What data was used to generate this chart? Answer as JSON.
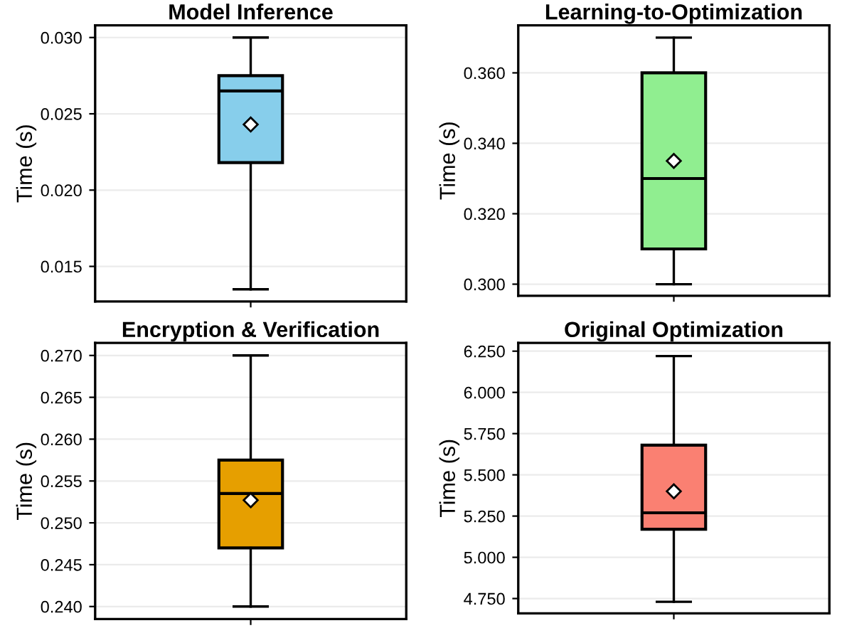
{
  "chart_data": [
    {
      "type": "box",
      "title": "Model Inference",
      "ylabel": "Time (s)",
      "categories": [
        null
      ],
      "series": [
        {
          "color": "#87ceeb",
          "boxes": [
            {
              "low": 0.0135,
              "q1": 0.0218,
              "median": 0.0265,
              "q3": 0.0275,
              "high": 0.03,
              "mean": 0.0243
            }
          ]
        }
      ],
      "ylim": [
        0.0127,
        0.0308
      ],
      "yticks": [
        {
          "value": 0.015,
          "label": "0.015"
        },
        {
          "value": 0.02,
          "label": "0.020"
        },
        {
          "value": 0.025,
          "label": "0.025"
        },
        {
          "value": 0.03,
          "label": "0.030"
        }
      ],
      "grid": "y",
      "tick_labels": "y",
      "marker": "diamond"
    },
    {
      "type": "box",
      "title": "Learning-to-Optimization",
      "ylabel": "Time (s)",
      "categories": [
        null
      ],
      "series": [
        {
          "color": "#90ee90",
          "boxes": [
            {
              "low": 0.3,
              "q1": 0.31,
              "median": 0.33,
              "q3": 0.36,
              "high": 0.37,
              "mean": 0.335
            }
          ]
        }
      ],
      "ylim": [
        0.2967,
        0.3735
      ],
      "yticks": [
        {
          "value": 0.3,
          "label": "0.300"
        },
        {
          "value": 0.32,
          "label": "0.320"
        },
        {
          "value": 0.34,
          "label": "0.340"
        },
        {
          "value": 0.36,
          "label": "0.360"
        }
      ],
      "grid": "y",
      "tick_labels": "y",
      "marker": "diamond"
    },
    {
      "type": "box",
      "title": "Encryption & Verification",
      "ylabel": "Time (s)",
      "categories": [
        null
      ],
      "series": [
        {
          "color": "#e69f00",
          "boxes": [
            {
              "low": 0.24,
              "q1": 0.247,
              "median": 0.2535,
              "q3": 0.2575,
              "high": 0.27,
              "mean": 0.2527
            }
          ]
        }
      ],
      "ylim": [
        0.2385,
        0.2715
      ],
      "yticks": [
        {
          "value": 0.24,
          "label": "0.240"
        },
        {
          "value": 0.245,
          "label": "0.245"
        },
        {
          "value": 0.25,
          "label": "0.250"
        },
        {
          "value": 0.255,
          "label": "0.255"
        },
        {
          "value": 0.26,
          "label": "0.260"
        },
        {
          "value": 0.265,
          "label": "0.265"
        },
        {
          "value": 0.27,
          "label": "0.270"
        }
      ],
      "grid": "y",
      "tick_labels": "y",
      "marker": "diamond"
    },
    {
      "type": "box",
      "title": "Original Optimization",
      "ylabel": "Time (s)",
      "categories": [
        null
      ],
      "series": [
        {
          "color": "#fa8072",
          "boxes": [
            {
              "low": 4.73,
              "q1": 5.17,
              "median": 5.27,
              "q3": 5.68,
              "high": 6.22,
              "mean": 5.4
            }
          ]
        }
      ],
      "ylim": [
        4.66,
        6.3
      ],
      "yticks": [
        {
          "value": 4.75,
          "label": "4.750"
        },
        {
          "value": 5.0,
          "label": "5.000"
        },
        {
          "value": 5.25,
          "label": "5.250"
        },
        {
          "value": 5.5,
          "label": "5.500"
        },
        {
          "value": 5.75,
          "label": "5.750"
        },
        {
          "value": 6.0,
          "label": "6.000"
        },
        {
          "value": 6.25,
          "label": "6.250"
        }
      ],
      "grid": "y",
      "tick_labels": "y",
      "marker": "diamond"
    }
  ]
}
